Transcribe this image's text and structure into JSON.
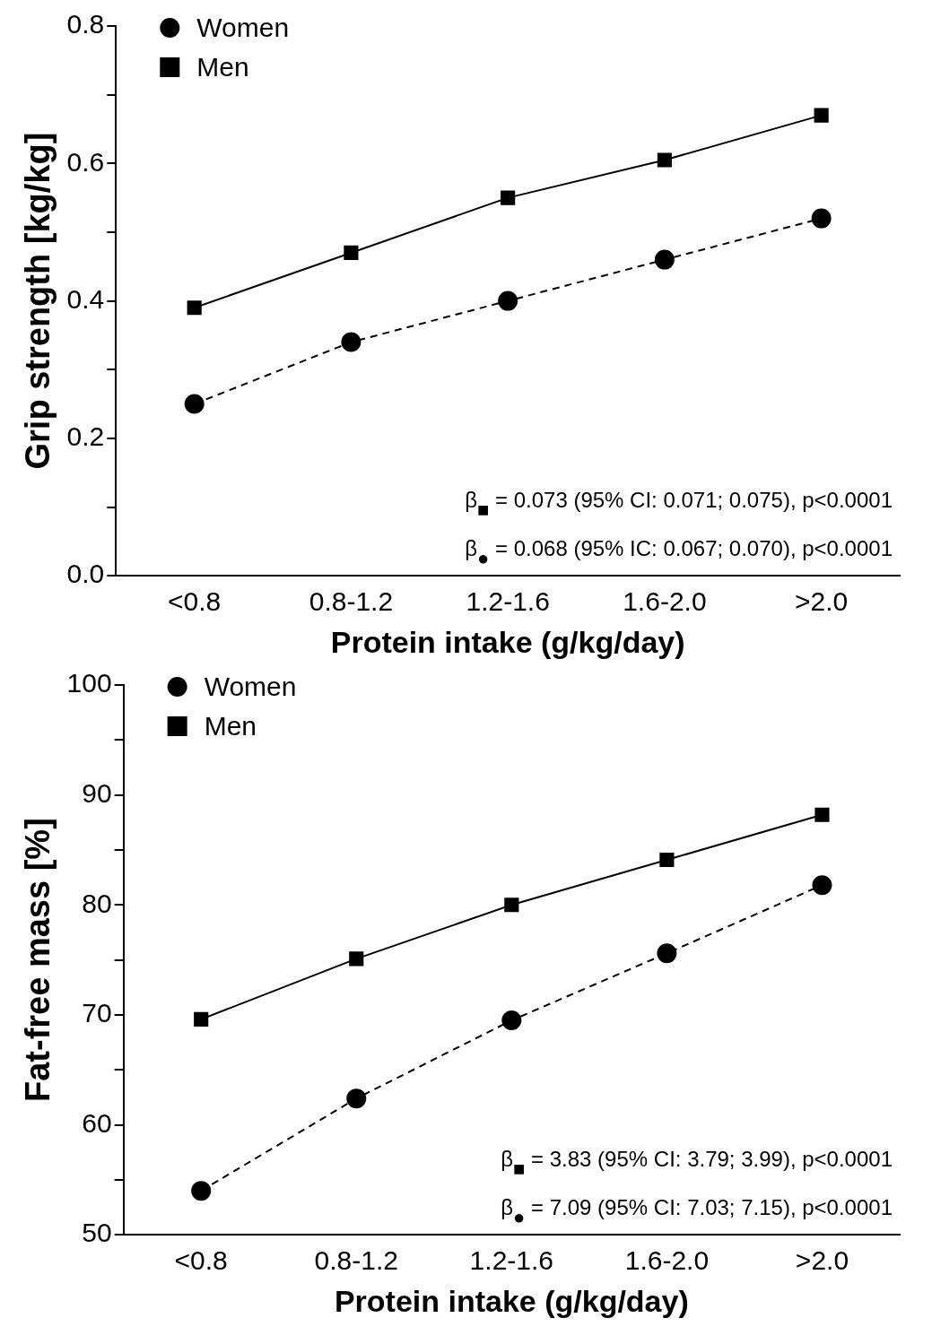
{
  "chart_data": [
    {
      "type": "line",
      "categories": [
        "<0.8",
        "0.8-1.2",
        "1.2-1.6",
        "1.6-2.0",
        ">2.0"
      ],
      "xlabel": "Protein intake (g/kg/day)",
      "ylabel": "Grip strength [kg/kg]",
      "ylim": [
        0,
        0.8
      ],
      "yticks": [
        {
          "value": 0,
          "label": "0.0"
        },
        {
          "value": 0.1,
          "label": null
        },
        {
          "value": 0.2,
          "label": "0.2"
        },
        {
          "value": 0.3,
          "label": null
        },
        {
          "value": 0.4,
          "label": "0.4"
        },
        {
          "value": 0.5,
          "label": null
        },
        {
          "value": 0.6,
          "label": "0.6"
        },
        {
          "value": 0.7,
          "label": null
        },
        {
          "value": 0.8,
          "label": "0.8"
        }
      ],
      "legend": "top left",
      "grid": false,
      "series": [
        {
          "name": "Women",
          "color": "#000000",
          "marker": "circle",
          "line_style": "dashed",
          "values": [
            0.25,
            0.34,
            0.4,
            0.46,
            0.52
          ]
        },
        {
          "name": "Men",
          "color": "#000000",
          "marker": "square",
          "line_style": "solid",
          "values": [
            0.39,
            0.47,
            0.55,
            0.605,
            0.67
          ]
        }
      ],
      "annotations": [
        "β$_{■}$ = 0.073 (95% CI: 0.071; 0.075), p<0.0001",
        "β$_{●}$ = 0.068 (95% IC: 0.067; 0.070), p<0.0001"
      ]
    },
    {
      "type": "line",
      "categories": [
        "<0.8",
        "0.8-1.2",
        "1.2-1.6",
        "1.6-2.0",
        ">2.0"
      ],
      "xlabel": "Protein intake (g/kg/day)",
      "ylabel": "Fat-free mass [%]",
      "ylim": [
        50,
        100
      ],
      "yticks": [
        50,
        {
          "value": 55,
          "label": null
        },
        60,
        {
          "value": 65,
          "label": null
        },
        70,
        {
          "value": 75,
          "label": null
        },
        80,
        {
          "value": 85,
          "label": null
        },
        90,
        {
          "value": 95,
          "label": null
        },
        100
      ],
      "legend": "top left",
      "grid": false,
      "series": [
        {
          "name": "Women",
          "color": "#000000",
          "marker": "circle",
          "line_style": "dashed",
          "values": [
            54.0,
            62.4,
            69.5,
            75.6,
            81.8
          ]
        },
        {
          "name": "Men",
          "color": "#000000",
          "marker": "square",
          "line_style": "solid",
          "values": [
            69.6,
            75.1,
            80.0,
            84.1,
            88.2
          ]
        }
      ],
      "annotations": [
        "β$_{■}$ = 3.83 (95% CI: 3.79; 3.99), p<0.0001",
        "β$_{●}$ = 7.09 (95% CI: 7.03; 7.15), p<0.0001"
      ]
    }
  ]
}
